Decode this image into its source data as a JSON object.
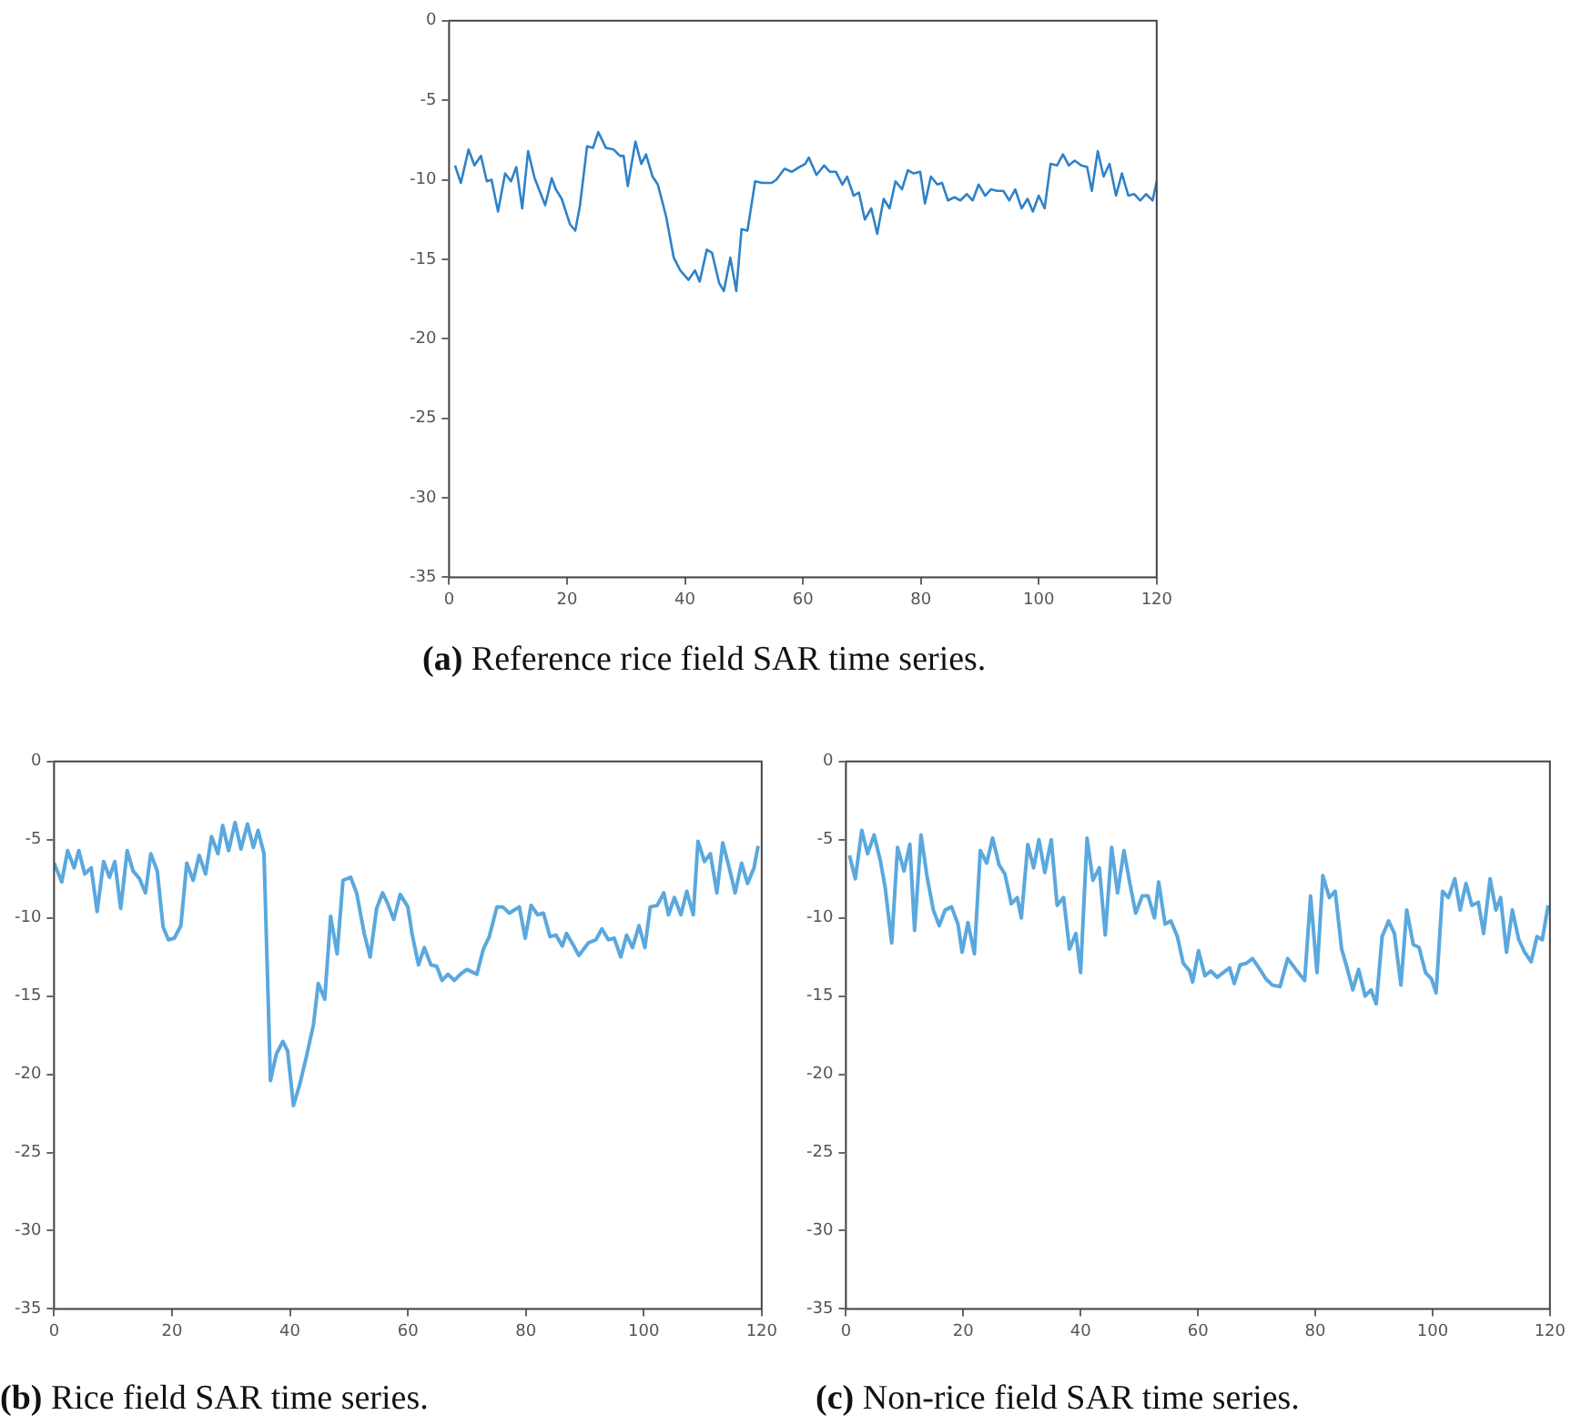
{
  "chart_data": [
    {
      "type": "line",
      "title": "(a) Reference rice field SAR time series.",
      "color": "#2e82c8",
      "xlim": [
        0,
        120
      ],
      "xticks": [
        0,
        20,
        40,
        60,
        80,
        100,
        120
      ],
      "ylim": [
        -35,
        0
      ],
      "yticks": [
        -35,
        -30,
        -25,
        -20,
        -15,
        -10,
        -5,
        0
      ],
      "x": [
        1.0,
        2.0,
        3.3,
        4.3,
        5.4,
        6.4,
        7.2,
        8.3,
        9.5,
        10.5,
        11.4,
        12.4,
        13.4,
        14.5,
        16.3,
        17.4,
        18.1,
        19.1,
        20.5,
        21.4,
        22.2,
        23.4,
        24.4,
        25.3,
        26.6,
        27.9,
        29.0,
        29.6,
        30.3,
        31.6,
        32.6,
        33.4,
        34.5,
        35.4,
        36.8,
        38.1,
        39.2,
        40.6,
        41.7,
        42.5,
        43.7,
        44.6,
        45.8,
        46.6,
        47.7,
        48.7,
        49.6,
        50.6,
        51.9,
        53.1,
        54.7,
        55.5,
        56.9,
        58.1,
        59.4,
        60.4,
        61.0,
        62.3,
        63.6,
        64.6,
        65.6,
        66.7,
        67.5,
        68.6,
        69.5,
        70.5,
        71.6,
        72.6,
        73.7,
        74.7,
        75.7,
        76.8,
        77.8,
        78.8,
        79.9,
        80.7,
        81.7,
        82.8,
        83.6,
        84.6,
        85.7,
        86.7,
        87.8,
        88.8,
        89.8,
        90.9,
        91.9,
        92.9,
        94.0,
        95.0,
        96.0,
        97.1,
        98.1,
        99.0,
        100.0,
        101.0,
        102.0,
        103.1,
        104.1,
        105.1,
        106.1,
        107.2,
        108.2,
        109.0,
        110.0,
        111.0,
        112.0,
        113.1,
        114.1,
        115.2,
        116.2,
        117.2,
        118.2,
        119.3,
        120
      ],
      "values": [
        -9.1,
        -10.2,
        -8.1,
        -9.1,
        -8.5,
        -10.1,
        -10,
        -12.0,
        -9.6,
        -10.1,
        -9.2,
        -11.8,
        -8.2,
        -9.9,
        -11.6,
        -9.9,
        -10.6,
        -11.2,
        -12.8,
        -13.2,
        -11.6,
        -7.9,
        -8.0,
        -7.0,
        -8.0,
        -8.1,
        -8.5,
        -8.5,
        -10.4,
        -7.6,
        -9.0,
        -8.4,
        -9.8,
        -10.3,
        -12.3,
        -14.9,
        -15.7,
        -16.3,
        -15.7,
        -16.4,
        -14.4,
        -14.6,
        -16.5,
        -17.0,
        -14.9,
        -17.0,
        -13.1,
        -13.2,
        -10.1,
        -10.2,
        -10.2,
        -10.0,
        -9.3,
        -9.5,
        -9.2,
        -9.0,
        -8.6,
        -9.7,
        -9.1,
        -9.5,
        -9.5,
        -10.3,
        -9.8,
        -11.0,
        -10.8,
        -12.5,
        -11.8,
        -13.4,
        -11.2,
        -11.8,
        -10.1,
        -10.6,
        -9.4,
        -9.6,
        -9.5,
        -11.5,
        -9.8,
        -10.3,
        -10.2,
        -11.3,
        -11.1,
        -11.3,
        -10.9,
        -11.3,
        -10.3,
        -11.0,
        -10.6,
        -10.7,
        -10.7,
        -11.3,
        -10.6,
        -11.8,
        -11.2,
        -12.0,
        -11.0,
        -11.8,
        -9.0,
        -9.1,
        -8.4,
        -9.1,
        -8.8,
        -9.1,
        -9.2,
        -10.7,
        -8.2,
        -9.8,
        -9.0,
        -11.0,
        -9.6,
        -11.0,
        -10.9,
        -11.3,
        -10.9,
        -11.3,
        -10.1
      ]
    },
    {
      "type": "line",
      "title": "(b) Rice field SAR time series.",
      "color": "#5aa8de",
      "xlim": [
        0,
        120
      ],
      "xticks": [
        0,
        20,
        40,
        60,
        80,
        100,
        120
      ],
      "ylim": [
        -35,
        0
      ],
      "yticks": [
        -35,
        -30,
        -25,
        -20,
        -15,
        -10,
        -5,
        0
      ],
      "x": [
        0,
        1.3,
        2.3,
        3.4,
        4.2,
        5.2,
        6.3,
        7.3,
        8.4,
        9.4,
        10.3,
        11.3,
        12.4,
        13.4,
        14.5,
        15.5,
        16.4,
        17.5,
        18.5,
        19.4,
        20.4,
        21.5,
        22.5,
        23.6,
        24.6,
        25.7,
        26.7,
        27.8,
        28.6,
        29.6,
        30.7,
        31.7,
        32.8,
        33.8,
        34.6,
        35.6,
        36.7,
        37.7,
        38.8,
        39.6,
        40.6,
        41.7,
        42.9,
        44.0,
        44.8,
        45.9,
        46.9,
        48.0,
        49.0,
        50.3,
        51.3,
        52.6,
        53.6,
        54.7,
        55.7,
        56.6,
        57.6,
        58.7,
        60.0,
        60.7,
        61.8,
        62.8,
        63.9,
        64.9,
        65.8,
        66.8,
        67.9,
        68.9,
        70.0,
        71.7,
        72.8,
        73.8,
        75.1,
        76.1,
        77.2,
        78.9,
        79.9,
        80.9,
        82.0,
        83.0,
        84.1,
        85.1,
        86.2,
        86.9,
        88.0,
        89.0,
        90.6,
        91.9,
        92.9,
        94.0,
        95.0,
        96.1,
        97.1,
        98.1,
        99.2,
        100.2,
        101.1,
        102.3,
        103.4,
        104.2,
        105.2,
        106.3,
        107.3,
        108.4,
        109.2,
        110.3,
        111.3,
        112.4,
        113.4,
        114.5,
        115.5,
        116.6,
        117.6,
        118.7,
        119.4
      ],
      "values": [
        -6.5,
        -7.7,
        -5.7,
        -6.8,
        -5.7,
        -7.2,
        -6.8,
        -9.6,
        -6.4,
        -7.4,
        -6.4,
        -9.4,
        -5.7,
        -7.0,
        -7.5,
        -8.4,
        -5.9,
        -7.0,
        -10.6,
        -11.4,
        -11.3,
        -10.5,
        -6.5,
        -7.6,
        -6.0,
        -7.2,
        -4.8,
        -5.9,
        -4.1,
        -5.7,
        -3.9,
        -5.6,
        -4.0,
        -5.5,
        -4.4,
        -5.9,
        -20.4,
        -18.7,
        -17.9,
        -18.5,
        -22.0,
        -20.6,
        -18.7,
        -16.8,
        -14.2,
        -15.2,
        -9.9,
        -12.3,
        -7.6,
        -7.4,
        -8.4,
        -11.0,
        -12.5,
        -9.4,
        -8.4,
        -9.1,
        -10.1,
        -8.5,
        -9.3,
        -11.0,
        -13.0,
        -11.9,
        -13.0,
        -13.1,
        -14.0,
        -13.6,
        -14.0,
        -13.6,
        -13.3,
        -13.6,
        -12.0,
        -11.2,
        -9.3,
        -9.3,
        -9.7,
        -9.3,
        -11.3,
        -9.2,
        -9.8,
        -9.7,
        -11.2,
        -11.1,
        -11.8,
        -11.0,
        -11.7,
        -12.4,
        -11.6,
        -11.4,
        -10.7,
        -11.4,
        -11.3,
        -12.5,
        -11.1,
        -11.9,
        -10.5,
        -11.9,
        -9.3,
        -9.2,
        -8.4,
        -9.8,
        -8.7,
        -9.8,
        -8.3,
        -9.8,
        -5.1,
        -6.4,
        -5.9,
        -8.4,
        -5.2,
        -6.8,
        -8.4,
        -6.5,
        -7.8,
        -6.8,
        -5.4
      ]
    },
    {
      "type": "line",
      "title": "(c) Non-rice field SAR time series.",
      "color": "#5aa8de",
      "xlim": [
        0,
        120
      ],
      "xticks": [
        0,
        20,
        40,
        60,
        80,
        100,
        120
      ],
      "ylim": [
        -35,
        0
      ],
      "yticks": [
        -35,
        -30,
        -25,
        -20,
        -15,
        -10,
        -5,
        0
      ],
      "x": [
        0.6,
        1.6,
        2.7,
        3.7,
        4.8,
        5.9,
        6.7,
        7.8,
        8.8,
        9.9,
        10.9,
        11.7,
        12.8,
        13.8,
        14.9,
        15.9,
        16.9,
        18.0,
        19.1,
        19.8,
        20.8,
        21.9,
        22.9,
        24.0,
        25.0,
        26.1,
        27.1,
        28.2,
        29.2,
        29.9,
        31.0,
        32.0,
        32.9,
        33.9,
        35.0,
        36.0,
        37.1,
        38.1,
        39.2,
        40.0,
        41.1,
        42.1,
        43.2,
        44.2,
        45.3,
        46.3,
        47.4,
        48.4,
        49.4,
        50.5,
        51.5,
        52.6,
        53.3,
        54.4,
        55.4,
        56.5,
        57.5,
        58.6,
        59.1,
        60.1,
        61.2,
        62.2,
        63.3,
        64.3,
        65.4,
        66.2,
        67.2,
        68.3,
        69.3,
        70.4,
        71.6,
        72.7,
        74.0,
        75.3,
        76.7,
        78.2,
        79.2,
        80.3,
        81.3,
        82.4,
        83.4,
        84.5,
        85.5,
        86.4,
        87.4,
        88.5,
        89.5,
        90.4,
        91.4,
        92.5,
        93.5,
        94.6,
        95.6,
        96.7,
        97.7,
        98.8,
        99.8,
        100.6,
        101.7,
        102.7,
        103.8,
        104.7,
        105.7,
        106.7,
        107.8,
        108.7,
        109.8,
        110.8,
        111.6,
        112.6,
        113.6,
        114.7,
        115.7,
        116.8,
        117.8,
        118.7,
        119.7
      ],
      "values": [
        -6.0,
        -7.5,
        -4.4,
        -5.9,
        -4.7,
        -6.4,
        -8.1,
        -11.6,
        -5.5,
        -7.0,
        -5.3,
        -10.8,
        -4.7,
        -7.3,
        -9.5,
        -10.5,
        -9.5,
        -9.3,
        -10.4,
        -12.2,
        -10.3,
        -12.3,
        -5.7,
        -6.5,
        -4.9,
        -6.6,
        -7.2,
        -9.1,
        -8.7,
        -10.0,
        -5.3,
        -6.8,
        -5.0,
        -7.1,
        -5.0,
        -9.2,
        -8.7,
        -12.0,
        -11.0,
        -13.5,
        -4.9,
        -7.6,
        -6.8,
        -11.1,
        -5.5,
        -8.4,
        -5.7,
        -7.8,
        -9.7,
        -8.6,
        -8.6,
        -10.0,
        -7.7,
        -10.4,
        -10.2,
        -11.2,
        -12.9,
        -13.4,
        -14.1,
        -12.1,
        -13.7,
        -13.4,
        -13.8,
        -13.5,
        -13.2,
        -14.2,
        -13.0,
        -12.9,
        -12.6,
        -13.2,
        -13.9,
        -14.3,
        -14.4,
        -12.6,
        -13.3,
        -14.0,
        -8.6,
        -13.5,
        -7.3,
        -8.7,
        -8.3,
        -12.0,
        -13.3,
        -14.6,
        -13.3,
        -15.0,
        -14.6,
        -15.5,
        -11.2,
        -10.2,
        -11.0,
        -14.3,
        -9.5,
        -11.7,
        -11.9,
        -13.5,
        -13.9,
        -14.8,
        -8.3,
        -8.7,
        -7.5,
        -9.5,
        -7.8,
        -9.2,
        -9.0,
        -11.0,
        -7.5,
        -9.5,
        -8.7,
        -12.2,
        -9.5,
        -11.4,
        -12.2,
        -12.8,
        -11.2,
        -11.4,
        -9.2
      ]
    }
  ]
}
